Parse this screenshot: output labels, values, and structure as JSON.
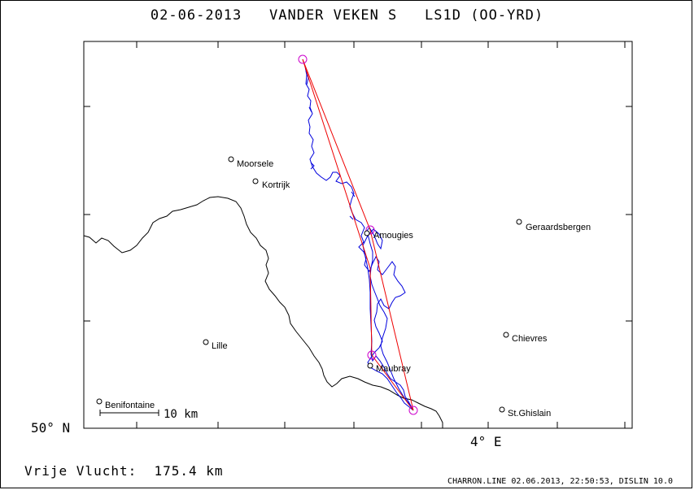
{
  "title": {
    "date": "02-06-2013",
    "pilot": "VANDER VEKEN S",
    "glider": "LS1D (OO-YRD)"
  },
  "axes": {
    "lat_label": "50° N",
    "lon_label": "4° E"
  },
  "scale_bar": "10 km",
  "places": [
    {
      "name": "Moorsele"
    },
    {
      "name": "Kortrijk"
    },
    {
      "name": "Amougies"
    },
    {
      "name": "Geraardsbergen"
    },
    {
      "name": "Lille"
    },
    {
      "name": "Chievres"
    },
    {
      "name": "Maubray"
    },
    {
      "name": "Benifontaine"
    },
    {
      "name": "St.Ghislain"
    }
  ],
  "footer": {
    "distance": "Vrije Vlucht:  175.4 km",
    "software": "CHARRON.LINE 02.06.2013, 22:50:53, DISLIN 10.0"
  },
  "colors": {
    "track": "#0000dd",
    "task": "#ee0000",
    "turnpoint": "#cc00cc",
    "border": "#000000"
  }
}
